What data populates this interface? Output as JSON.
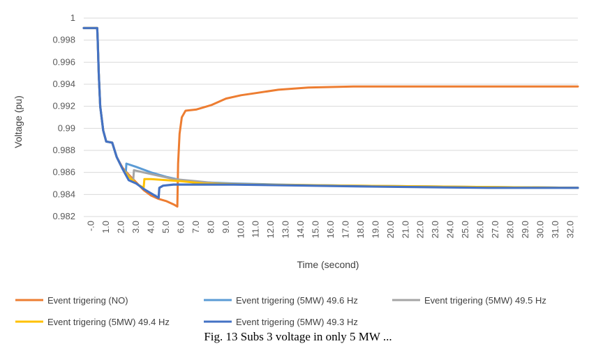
{
  "chart_data": {
    "type": "line",
    "title": "",
    "xlabel": "Time (second)",
    "ylabel": "Voltage (pu)",
    "x_tick_labels": [
      "-.0",
      "1.0",
      "2.0",
      "3.0",
      "4.0",
      "5.0",
      "6.0",
      "7.0",
      "8.0",
      "9.0",
      "10.0",
      "11.0",
      "12.0",
      "13.0",
      "14.0",
      "15.0",
      "16.0",
      "17.0",
      "18.0",
      "19.0",
      "20.0",
      "21.0",
      "22.0",
      "23.0",
      "24.0",
      "25.0",
      "26.0",
      "27.0",
      "28.0",
      "29.0",
      "30.0",
      "31.0",
      "32.0"
    ],
    "y_tick_labels": [
      "0.982",
      "0.984",
      "0.986",
      "0.988",
      "0.99",
      "0.992",
      "0.994",
      "0.996",
      "0.998",
      "1"
    ],
    "xlim": [
      0,
      33
    ],
    "ylim": [
      0.982,
      1.0
    ],
    "grid": true,
    "legend_position": "bottom",
    "series": [
      {
        "name": "Event trigering (NO)",
        "color": "#ED7D31",
        "points": [
          [
            0,
            0.9991
          ],
          [
            0.9,
            0.9991
          ],
          [
            0.93,
            0.998
          ],
          [
            1.0,
            0.995
          ],
          [
            1.1,
            0.992
          ],
          [
            1.3,
            0.9898
          ],
          [
            1.5,
            0.9888
          ],
          [
            1.9,
            0.9887
          ],
          [
            2.2,
            0.9874
          ],
          [
            2.6,
            0.9864
          ],
          [
            3.0,
            0.9858
          ],
          [
            3.5,
            0.9851
          ],
          [
            4.0,
            0.9844
          ],
          [
            4.5,
            0.9839
          ],
          [
            5.0,
            0.9836
          ],
          [
            5.5,
            0.9834
          ],
          [
            6.0,
            0.9831
          ],
          [
            6.25,
            0.9829
          ],
          [
            6.3,
            0.9868
          ],
          [
            6.4,
            0.9895
          ],
          [
            6.55,
            0.991
          ],
          [
            6.8,
            0.9916
          ],
          [
            7.5,
            0.9917
          ],
          [
            8.5,
            0.9921
          ],
          [
            9.5,
            0.9927
          ],
          [
            10.5,
            0.993
          ],
          [
            11.5,
            0.9932
          ],
          [
            13,
            0.9935
          ],
          [
            15,
            0.9937
          ],
          [
            18,
            0.9938
          ],
          [
            22,
            0.9938
          ],
          [
            33,
            0.9938
          ]
        ]
      },
      {
        "name": "Event trigering (5MW) 49.6 Hz",
        "color": "#5B9BD5",
        "points": [
          [
            0,
            0.9991
          ],
          [
            0.9,
            0.9991
          ],
          [
            0.93,
            0.998
          ],
          [
            1.0,
            0.995
          ],
          [
            1.1,
            0.992
          ],
          [
            1.3,
            0.9898
          ],
          [
            1.5,
            0.9888
          ],
          [
            1.9,
            0.9887
          ],
          [
            2.2,
            0.9874
          ],
          [
            2.6,
            0.9863
          ],
          [
            2.8,
            0.9858
          ],
          [
            2.85,
            0.9868
          ],
          [
            3.5,
            0.9865
          ],
          [
            4.5,
            0.986
          ],
          [
            5.5,
            0.9856
          ],
          [
            6.5,
            0.9853
          ],
          [
            8,
            0.9851
          ],
          [
            10,
            0.985
          ],
          [
            13,
            0.9849
          ],
          [
            18,
            0.9848
          ],
          [
            25,
            0.9847
          ],
          [
            33,
            0.9846
          ]
        ]
      },
      {
        "name": "Event trigering (5MW) 49.5 Hz",
        "color": "#A5A5A5",
        "points": [
          [
            0,
            0.9991
          ],
          [
            0.9,
            0.9991
          ],
          [
            0.93,
            0.998
          ],
          [
            1.0,
            0.995
          ],
          [
            1.1,
            0.992
          ],
          [
            1.3,
            0.9898
          ],
          [
            1.5,
            0.9888
          ],
          [
            1.9,
            0.9887
          ],
          [
            2.2,
            0.9874
          ],
          [
            2.6,
            0.9863
          ],
          [
            3.0,
            0.9857
          ],
          [
            3.3,
            0.9852
          ],
          [
            3.35,
            0.9862
          ],
          [
            4,
            0.986
          ],
          [
            5,
            0.9857
          ],
          [
            6,
            0.9854
          ],
          [
            7.5,
            0.9852
          ],
          [
            9,
            0.985
          ],
          [
            12,
            0.9849
          ],
          [
            18,
            0.9848
          ],
          [
            25,
            0.9847
          ],
          [
            33,
            0.9846
          ]
        ]
      },
      {
        "name": "Event trigering (5MW) 49.4 Hz",
        "color": "#FFC000",
        "points": [
          [
            0,
            0.9991
          ],
          [
            0.9,
            0.9991
          ],
          [
            0.93,
            0.998
          ],
          [
            1.0,
            0.995
          ],
          [
            1.1,
            0.992
          ],
          [
            1.3,
            0.9898
          ],
          [
            1.5,
            0.9888
          ],
          [
            1.9,
            0.9887
          ],
          [
            2.2,
            0.9874
          ],
          [
            2.6,
            0.9863
          ],
          [
            3.0,
            0.9856
          ],
          [
            3.5,
            0.985
          ],
          [
            4.0,
            0.9846
          ],
          [
            4.05,
            0.9854
          ],
          [
            4.5,
            0.9854
          ],
          [
            5.5,
            0.9853
          ],
          [
            6.5,
            0.9852
          ],
          [
            8,
            0.985
          ],
          [
            11,
            0.9849
          ],
          [
            18,
            0.9848
          ],
          [
            25,
            0.9847
          ],
          [
            33,
            0.9846
          ]
        ]
      },
      {
        "name": "Event trigering (5MW) 49.3 Hz",
        "color": "#4472C4",
        "points": [
          [
            0,
            0.9991
          ],
          [
            0.9,
            0.9991
          ],
          [
            0.93,
            0.998
          ],
          [
            1.0,
            0.995
          ],
          [
            1.1,
            0.992
          ],
          [
            1.3,
            0.9898
          ],
          [
            1.5,
            0.9888
          ],
          [
            1.9,
            0.9887
          ],
          [
            2.2,
            0.9874
          ],
          [
            2.6,
            0.9863
          ],
          [
            3.0,
            0.9853
          ],
          [
            3.5,
            0.985
          ],
          [
            4.0,
            0.9845
          ],
          [
            4.5,
            0.9841
          ],
          [
            5.0,
            0.9837
          ],
          [
            5.05,
            0.9846
          ],
          [
            5.3,
            0.9848
          ],
          [
            6,
            0.9849
          ],
          [
            7,
            0.9849
          ],
          [
            10,
            0.9849
          ],
          [
            15,
            0.9848
          ],
          [
            20,
            0.9847
          ],
          [
            27,
            0.9846
          ],
          [
            33,
            0.9846
          ]
        ]
      }
    ]
  },
  "caption": "Fig. 13 Subs 3 voltage in only 5 MW ..."
}
